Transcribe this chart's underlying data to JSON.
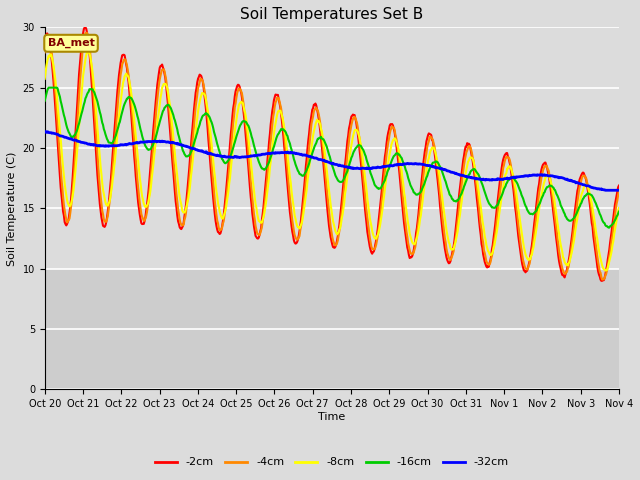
{
  "title": "Soil Temperatures Set B",
  "xlabel": "Time",
  "ylabel": "Soil Temperature (C)",
  "annotation": "BA_met",
  "ylim": [
    0,
    30
  ],
  "yticks": [
    0,
    5,
    10,
    15,
    20,
    25,
    30
  ],
  "xtick_labels": [
    "Oct 20",
    "Oct 21",
    "Oct 22",
    "Oct 23",
    "Oct 24",
    "Oct 25",
    "Oct 26",
    "Oct 27",
    "Oct 28",
    "Oct 29",
    "Oct 30",
    "Oct 31",
    "Nov 1",
    "Nov 2",
    "Nov 3",
    "Nov 4"
  ],
  "series_labels": [
    "-2cm",
    "-4cm",
    "-8cm",
    "-16cm",
    "-32cm"
  ],
  "series_colors": [
    "#ff0000",
    "#ff8800",
    "#ffff00",
    "#00cc00",
    "#0000ff"
  ],
  "series_linewidths": [
    1.5,
    1.5,
    1.5,
    1.5,
    2.0
  ],
  "plot_bg_color": "#dcdcdc",
  "plot_bg_color2": "#c8c8c8",
  "grid_color": "#ffffff",
  "days": 15,
  "n_points": 720,
  "title_fontsize": 11,
  "tick_fontsize": 7,
  "legend_fontsize": 8
}
